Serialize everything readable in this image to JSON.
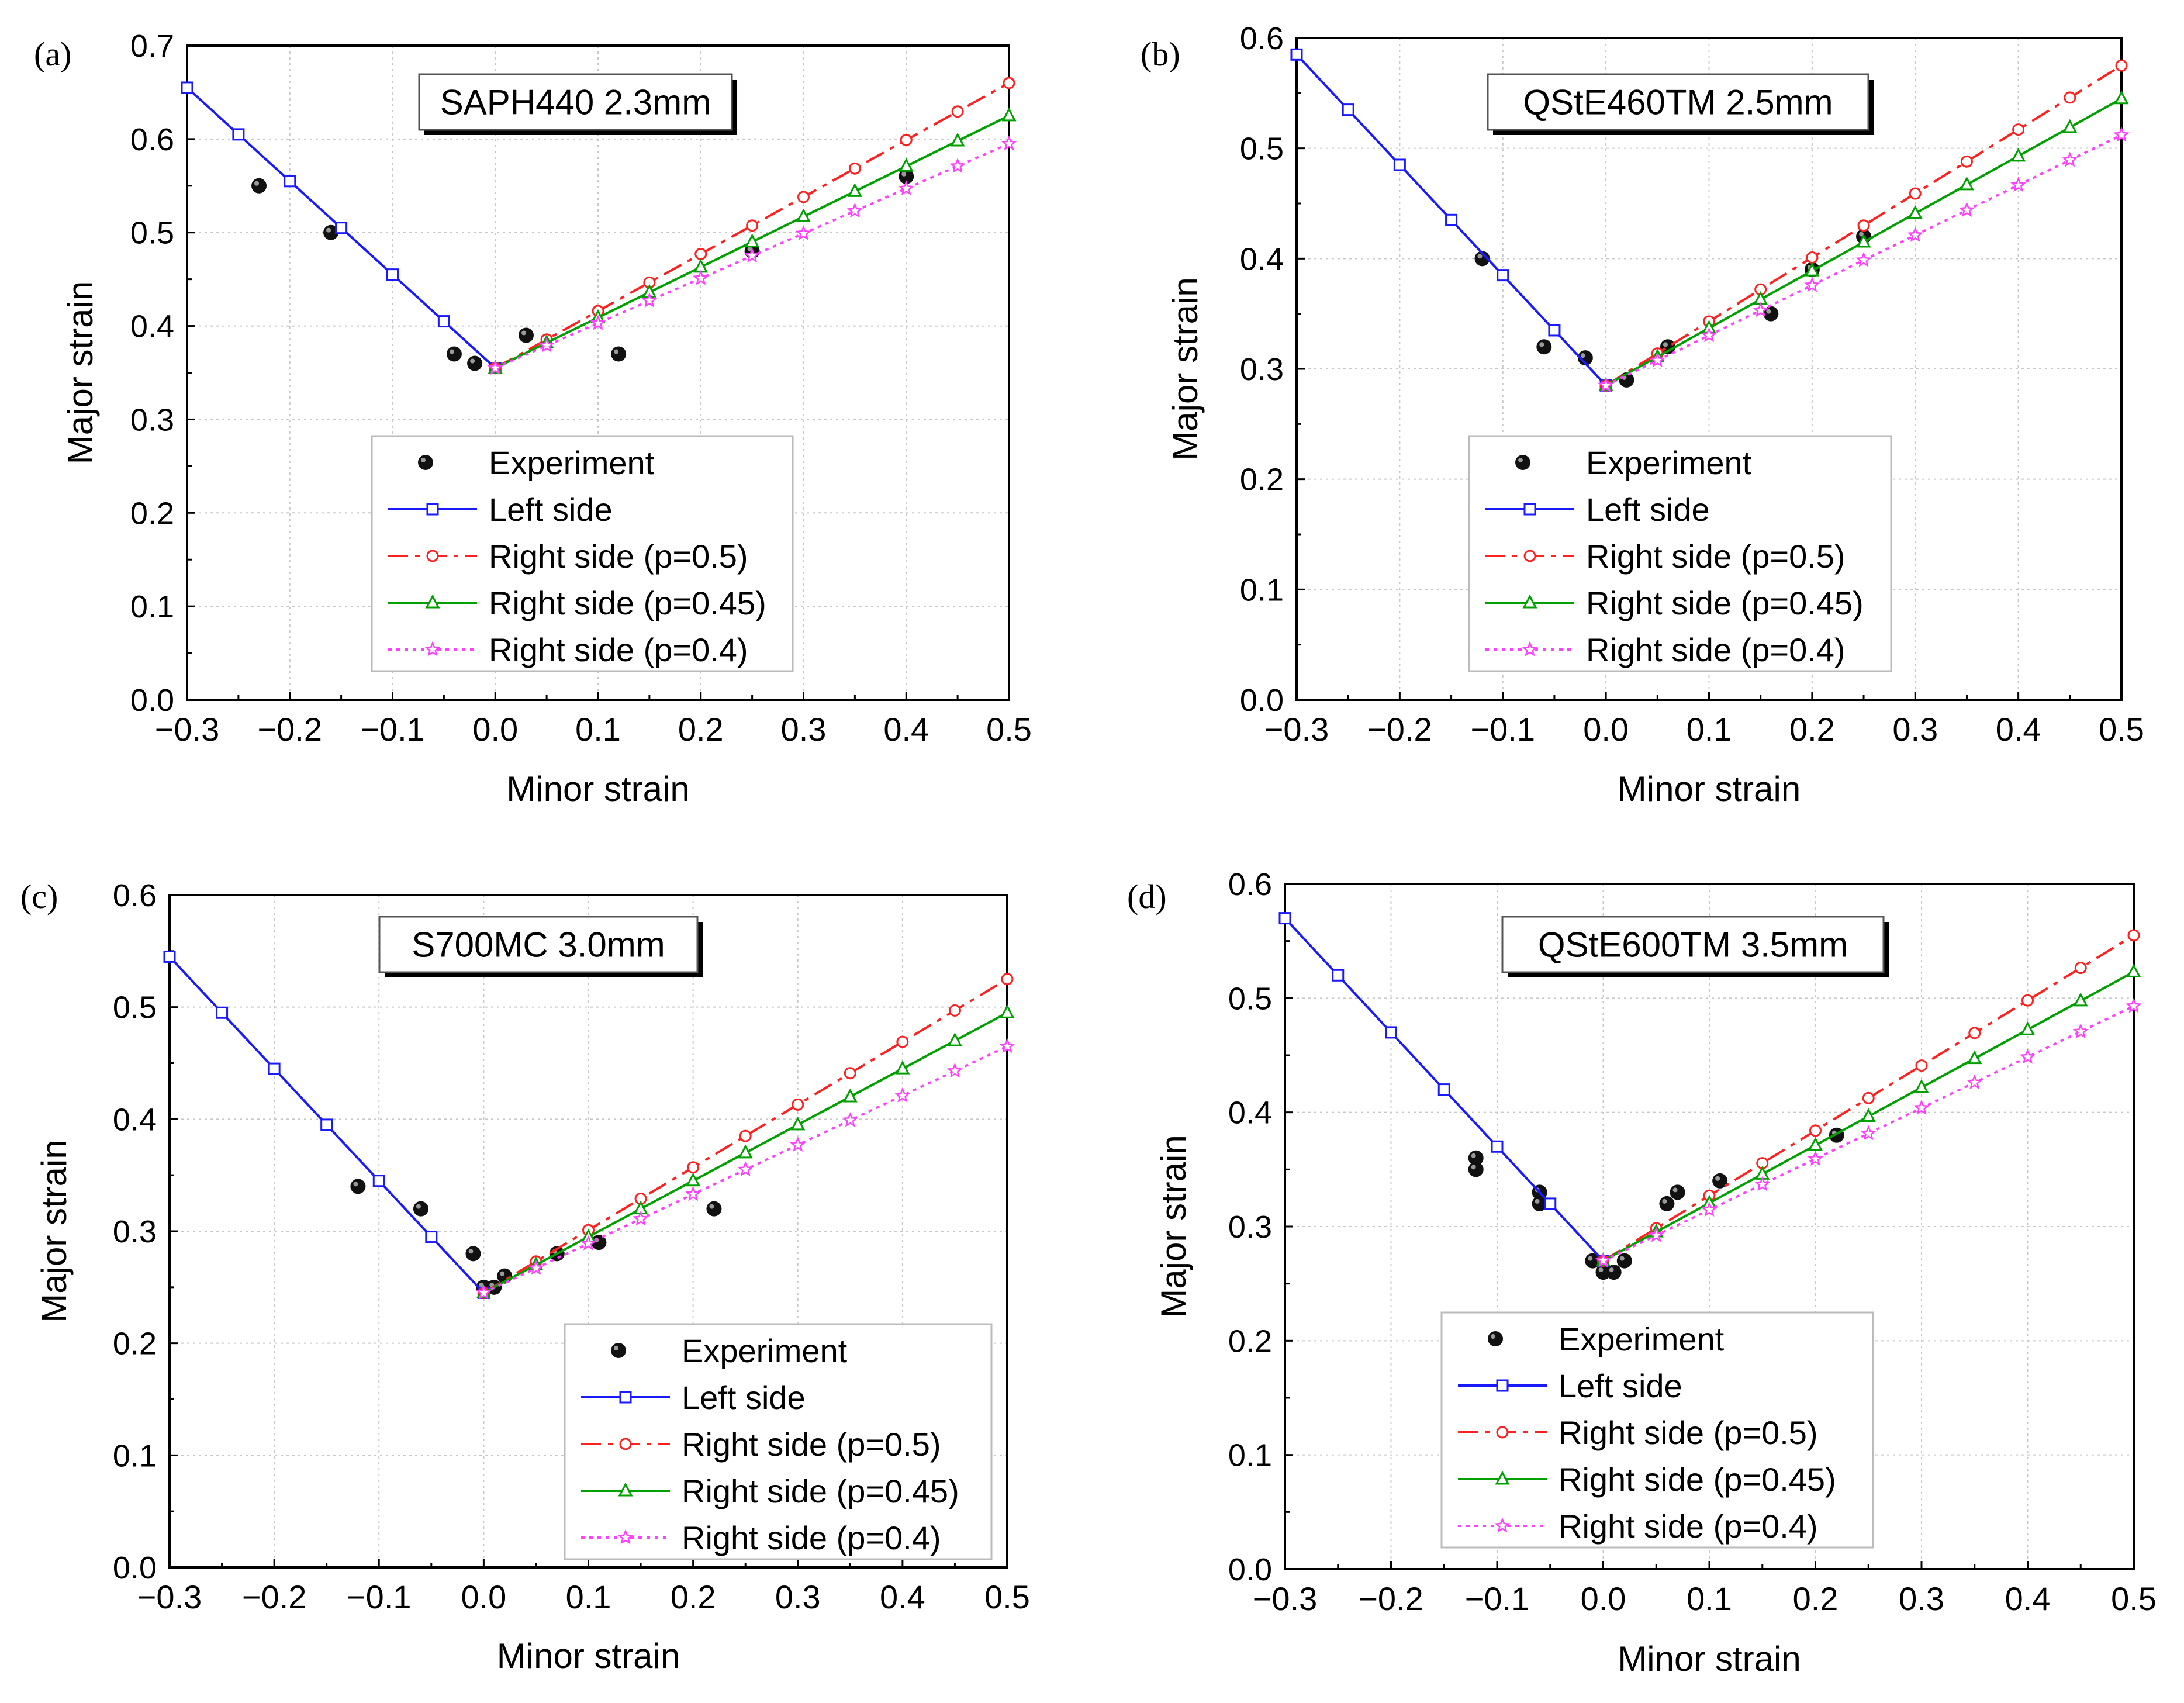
{
  "figure": {
    "panel_labels": [
      "(a)",
      "(b)",
      "(c)",
      "(d)"
    ]
  },
  "legend": {
    "entries": [
      "Experiment",
      "Left side",
      "Right side (p=0.5)",
      "Right side (p=0.45)",
      "Right side (p=0.4)"
    ]
  },
  "colors": {
    "experiment": "#000000",
    "left": "#1a1aff",
    "p05": "#ff2020",
    "p045": "#00a000",
    "p04": "#ff40ff"
  },
  "chart_data": [
    {
      "type": "line",
      "panel": "(a)",
      "title": "SAPH440 2.3mm",
      "xlabel": "Minor strain",
      "ylabel": "Major strain",
      "xlim": [
        -0.3,
        0.5
      ],
      "ylim": [
        0.0,
        0.7
      ],
      "xticks": [
        "−0.3",
        "−0.2",
        "−0.1",
        "0.0",
        "0.1",
        "0.2",
        "0.3",
        "0.4",
        "0.5"
      ],
      "yticks": [
        "0.0",
        "0.1",
        "0.2",
        "0.3",
        "0.4",
        "0.5",
        "0.6",
        "0.7"
      ],
      "grid": true,
      "legend_position": "bottom-center",
      "series": [
        {
          "name": "Experiment",
          "kind": "scatter",
          "x": [
            -0.23,
            -0.16,
            -0.04,
            -0.02,
            0.03,
            0.12,
            0.25,
            0.4
          ],
          "y": [
            0.55,
            0.5,
            0.37,
            0.36,
            0.39,
            0.37,
            0.48,
            0.56
          ]
        },
        {
          "name": "Left side",
          "kind": "line",
          "x": [
            -0.3,
            0.0
          ],
          "y": [
            0.655,
            0.355
          ]
        },
        {
          "name": "Right side (p=0.5)",
          "kind": "line",
          "x": [
            0.0,
            0.5
          ],
          "y": [
            0.355,
            0.66
          ]
        },
        {
          "name": "Right side (p=0.45)",
          "kind": "line",
          "x": [
            0.0,
            0.5
          ],
          "y": [
            0.355,
            0.625
          ]
        },
        {
          "name": "Right side (p=0.4)",
          "kind": "line",
          "x": [
            0.0,
            0.5
          ],
          "y": [
            0.355,
            0.595
          ]
        }
      ]
    },
    {
      "type": "line",
      "panel": "(b)",
      "title": "QStE460TM 2.5mm",
      "xlabel": "Minor strain",
      "ylabel": "Major strain",
      "xlim": [
        -0.3,
        0.5
      ],
      "ylim": [
        0.0,
        0.6
      ],
      "xticks": [
        "−0.3",
        "−0.2",
        "−0.1",
        "0.0",
        "0.1",
        "0.2",
        "0.3",
        "0.4",
        "0.5"
      ],
      "yticks": [
        "0.0",
        "0.1",
        "0.2",
        "0.3",
        "0.4",
        "0.5",
        "0.6"
      ],
      "grid": true,
      "legend_position": "bottom-center",
      "series": [
        {
          "name": "Experiment",
          "kind": "scatter",
          "x": [
            -0.12,
            -0.06,
            -0.02,
            0.02,
            0.06,
            0.16,
            0.2,
            0.25
          ],
          "y": [
            0.4,
            0.32,
            0.31,
            0.29,
            0.32,
            0.35,
            0.39,
            0.42
          ]
        },
        {
          "name": "Left side",
          "kind": "line",
          "x": [
            -0.3,
            0.0
          ],
          "y": [
            0.585,
            0.285
          ]
        },
        {
          "name": "Right side (p=0.5)",
          "kind": "line",
          "x": [
            0.0,
            0.5
          ],
          "y": [
            0.285,
            0.575
          ]
        },
        {
          "name": "Right side (p=0.45)",
          "kind": "line",
          "x": [
            0.0,
            0.5
          ],
          "y": [
            0.285,
            0.545
          ]
        },
        {
          "name": "Right side (p=0.4)",
          "kind": "line",
          "x": [
            0.0,
            0.5
          ],
          "y": [
            0.285,
            0.512
          ]
        }
      ]
    },
    {
      "type": "line",
      "panel": "(c)",
      "title": "S700MC 3.0mm",
      "xlabel": "Minor strain",
      "ylabel": "Major strain",
      "xlim": [
        -0.3,
        0.5
      ],
      "ylim": [
        0.0,
        0.6
      ],
      "xticks": [
        "−0.3",
        "−0.2",
        "−0.1",
        "0.0",
        "0.1",
        "0.2",
        "0.3",
        "0.4",
        "0.5"
      ],
      "yticks": [
        "0.0",
        "0.1",
        "0.2",
        "0.3",
        "0.4",
        "0.5",
        "0.6"
      ],
      "grid": true,
      "legend_position": "bottom-right",
      "series": [
        {
          "name": "Experiment",
          "kind": "scatter",
          "x": [
            -0.12,
            -0.06,
            -0.01,
            0.0,
            0.01,
            0.02,
            0.07,
            0.11,
            0.22
          ],
          "y": [
            0.34,
            0.32,
            0.28,
            0.25,
            0.25,
            0.26,
            0.28,
            0.29,
            0.32
          ]
        },
        {
          "name": "Left side",
          "kind": "line",
          "x": [
            -0.3,
            0.0
          ],
          "y": [
            0.545,
            0.245
          ]
        },
        {
          "name": "Right side (p=0.5)",
          "kind": "line",
          "x": [
            0.0,
            0.5
          ],
          "y": [
            0.245,
            0.525
          ]
        },
        {
          "name": "Right side (p=0.45)",
          "kind": "line",
          "x": [
            0.0,
            0.5
          ],
          "y": [
            0.245,
            0.495
          ]
        },
        {
          "name": "Right side (p=0.4)",
          "kind": "line",
          "x": [
            0.0,
            0.5
          ],
          "y": [
            0.245,
            0.465
          ]
        }
      ]
    },
    {
      "type": "line",
      "panel": "(d)",
      "title": "QStE600TM 3.5mm",
      "xlabel": "Minor strain",
      "ylabel": "Major strain",
      "xlim": [
        -0.3,
        0.5
      ],
      "ylim": [
        0.0,
        0.6
      ],
      "xticks": [
        "−0.3",
        "−0.2",
        "−0.1",
        "0.0",
        "0.1",
        "0.2",
        "0.3",
        "0.4",
        "0.5"
      ],
      "yticks": [
        "0.0",
        "0.1",
        "0.2",
        "0.3",
        "0.4",
        "0.5",
        "0.6"
      ],
      "grid": true,
      "legend_position": "bottom-center",
      "series": [
        {
          "name": "Experiment",
          "kind": "scatter",
          "x": [
            -0.12,
            -0.12,
            -0.06,
            -0.06,
            -0.01,
            0.0,
            0.01,
            0.02,
            0.06,
            0.07,
            0.11,
            0.22
          ],
          "y": [
            0.36,
            0.35,
            0.33,
            0.32,
            0.27,
            0.26,
            0.26,
            0.27,
            0.32,
            0.33,
            0.34,
            0.38
          ]
        },
        {
          "name": "Left side",
          "kind": "line",
          "x": [
            -0.3,
            0.0
          ],
          "y": [
            0.57,
            0.27
          ]
        },
        {
          "name": "Right side (p=0.5)",
          "kind": "line",
          "x": [
            0.0,
            0.5
          ],
          "y": [
            0.27,
            0.555
          ]
        },
        {
          "name": "Right side (p=0.45)",
          "kind": "line",
          "x": [
            0.0,
            0.5
          ],
          "y": [
            0.27,
            0.523
          ]
        },
        {
          "name": "Right side (p=0.4)",
          "kind": "line",
          "x": [
            0.0,
            0.5
          ],
          "y": [
            0.27,
            0.493
          ]
        }
      ]
    }
  ]
}
